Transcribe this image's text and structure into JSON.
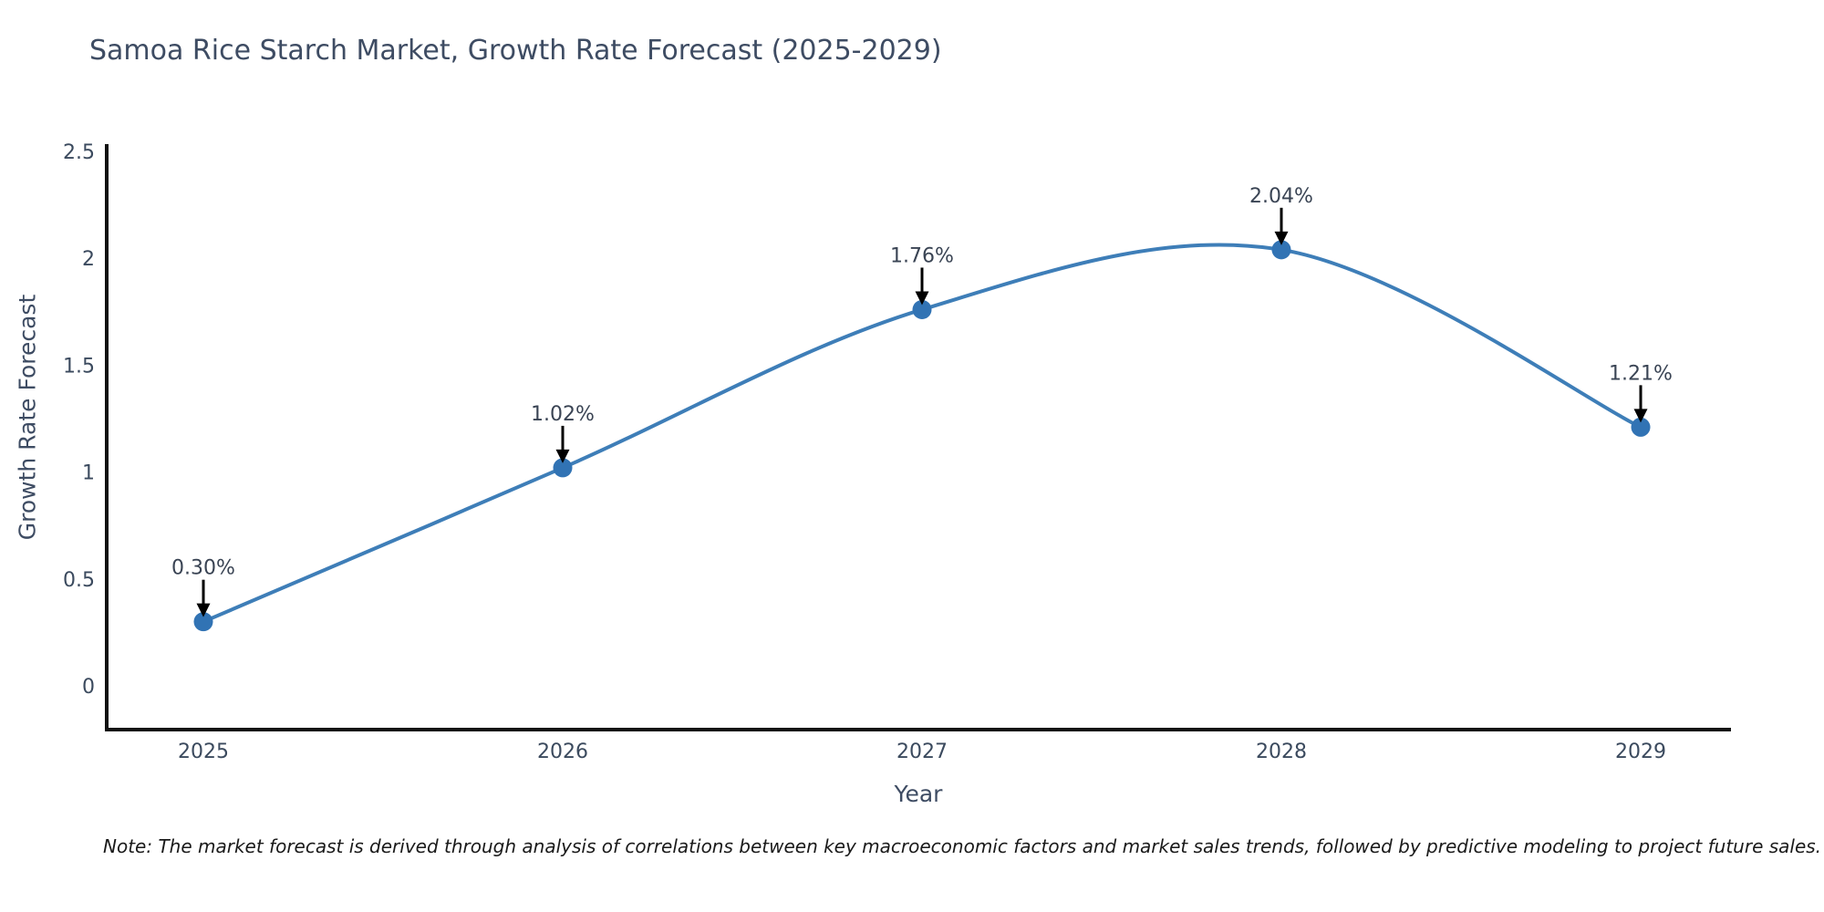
{
  "title": "Samoa Rice Starch Market, Growth Rate Forecast (2025-2029)",
  "note": "Note: The market forecast is derived through analysis of correlations between key macroeconomic factors and market sales trends, followed by predictive modeling to project future sales.",
  "x_axis": {
    "title": "Year",
    "tick_labels": [
      "2025",
      "2026",
      "2027",
      "2028",
      "2029"
    ]
  },
  "y_axis": {
    "title": "Growth Rate Forecast",
    "tick_labels": [
      "0",
      "0.5",
      "1",
      "1.5",
      "2",
      "2.5"
    ]
  },
  "chart_data": {
    "type": "line",
    "title": "Samoa Rice Starch Market, Growth Rate Forecast (2025-2029)",
    "xlabel": "Year",
    "ylabel": "Growth Rate Forecast",
    "x": [
      2025,
      2026,
      2027,
      2028,
      2029
    ],
    "values": [
      0.3,
      1.02,
      1.76,
      2.04,
      1.21
    ],
    "point_labels": [
      "0.30%",
      "1.02%",
      "1.76%",
      "2.04%",
      "1.21%"
    ],
    "yticks": [
      0,
      0.5,
      1,
      1.5,
      2,
      2.5
    ],
    "ylim": [
      -0.2,
      2.53
    ],
    "line_shape": "spline",
    "grid": false,
    "legend": false,
    "colors": {
      "line": "#3e7eb8",
      "marker": "#3173b4",
      "axis_line": "#111111",
      "tick_text": "#3b4a5e",
      "annotation_text": "#3a4454",
      "annotation_arrow": "#000000",
      "background": "#ffffff"
    }
  }
}
